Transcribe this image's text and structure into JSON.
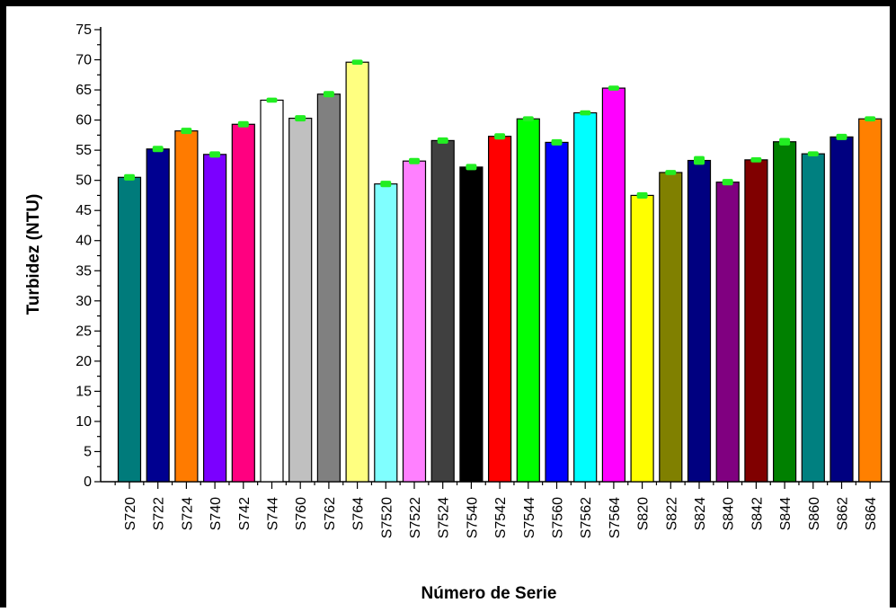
{
  "chart_data": {
    "type": "bar",
    "title": "",
    "xlabel": "Número de Serie",
    "ylabel": "Turbidez (NTU)",
    "ylim": [
      0,
      75
    ],
    "y_ticks": [
      "0",
      "5",
      "10",
      "15",
      "20",
      "25",
      "30",
      "35",
      "40",
      "45",
      "50",
      "55",
      "60",
      "65",
      "70",
      "75"
    ],
    "grid": false,
    "legend": "none",
    "error_bar_color": "#22ee22",
    "bars": [
      {
        "label": "S720",
        "value": 50.5,
        "error": 0.3,
        "color": "#007b7b"
      },
      {
        "label": "S722",
        "value": 55.2,
        "error": 0.3,
        "color": "#000090"
      },
      {
        "label": "S724",
        "value": 58.2,
        "error": 0.3,
        "color": "#ff7b00"
      },
      {
        "label": "S740",
        "value": 54.3,
        "error": 0.3,
        "color": "#7b00ff"
      },
      {
        "label": "S742",
        "value": 59.3,
        "error": 0.3,
        "color": "#ff0080"
      },
      {
        "label": "S744",
        "value": 63.3,
        "error": 0.2,
        "color": "#ffffff"
      },
      {
        "label": "S760",
        "value": 60.3,
        "error": 0.3,
        "color": "#c0c0c0"
      },
      {
        "label": "S762",
        "value": 64.3,
        "error": 0.3,
        "color": "#808080"
      },
      {
        "label": "S764",
        "value": 69.6,
        "error": 0.2,
        "color": "#ffff80"
      },
      {
        "label": "S7520",
        "value": 49.4,
        "error": 0.3,
        "color": "#80ffff"
      },
      {
        "label": "S7522",
        "value": 53.2,
        "error": 0.3,
        "color": "#ff80ff"
      },
      {
        "label": "S7524",
        "value": 56.6,
        "error": 0.3,
        "color": "#404040"
      },
      {
        "label": "S7540",
        "value": 52.2,
        "error": 0.3,
        "color": "#000000"
      },
      {
        "label": "S7542",
        "value": 57.3,
        "error": 0.3,
        "color": "#ff0000"
      },
      {
        "label": "S7544",
        "value": 60.2,
        "error": 0.2,
        "color": "#00ff00"
      },
      {
        "label": "S7560",
        "value": 56.3,
        "error": 0.3,
        "color": "#0000ff"
      },
      {
        "label": "S7562",
        "value": 61.2,
        "error": 0.2,
        "color": "#00ffff"
      },
      {
        "label": "S7564",
        "value": 65.3,
        "error": 0.2,
        "color": "#ff00ff"
      },
      {
        "label": "S820",
        "value": 47.5,
        "error": 0.3,
        "color": "#ffff00"
      },
      {
        "label": "S822",
        "value": 51.3,
        "error": 0.2,
        "color": "#808000"
      },
      {
        "label": "S824",
        "value": 53.3,
        "error": 0.5,
        "color": "#000080"
      },
      {
        "label": "S840",
        "value": 49.7,
        "error": 0.3,
        "color": "#800080"
      },
      {
        "label": "S842",
        "value": 53.4,
        "error": 0.2,
        "color": "#800000"
      },
      {
        "label": "S844",
        "value": 56.4,
        "error": 0.4,
        "color": "#008000"
      },
      {
        "label": "S860",
        "value": 54.4,
        "error": 0.2,
        "color": "#008080"
      },
      {
        "label": "S862",
        "value": 57.2,
        "error": 0.3,
        "color": "#000080"
      },
      {
        "label": "S864",
        "value": 60.2,
        "error": 0.2,
        "color": "#ff8000"
      }
    ]
  }
}
